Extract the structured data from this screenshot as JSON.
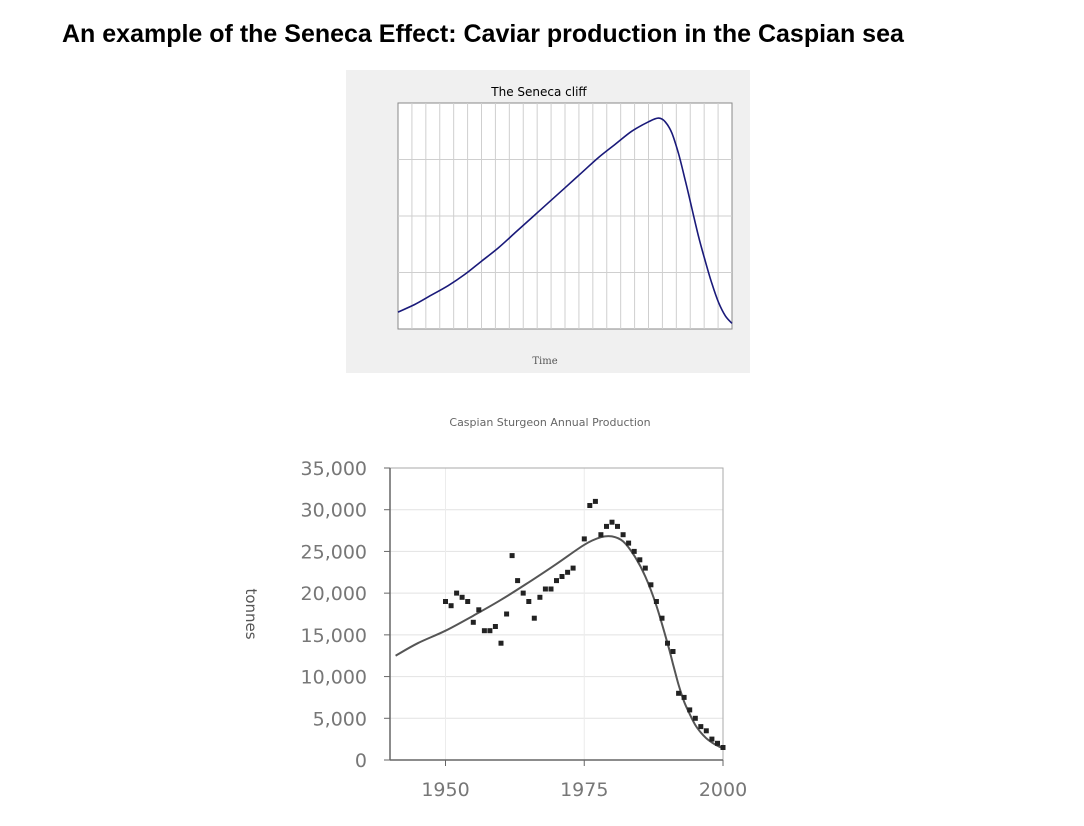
{
  "page": {
    "title": "An example of the Seneca Effect: Caviar production in the Caspian sea",
    "stray_mark": "\\"
  },
  "chart_data": [
    {
      "type": "line",
      "title": "The Seneca cliff",
      "xlabel": "Time",
      "ylabel": "",
      "grid": true,
      "x": [
        0,
        0.05,
        0.1,
        0.15,
        0.2,
        0.25,
        0.3,
        0.35,
        0.4,
        0.45,
        0.5,
        0.55,
        0.6,
        0.65,
        0.7,
        0.75,
        0.78,
        0.8,
        0.82,
        0.84,
        0.86,
        0.88,
        0.9,
        0.92,
        0.94,
        0.96,
        0.98,
        1.0
      ],
      "series": [
        {
          "values": [
            0.09,
            0.13,
            0.18,
            0.23,
            0.29,
            0.36,
            0.43,
            0.51,
            0.59,
            0.67,
            0.75,
            0.83,
            0.91,
            0.98,
            1.05,
            1.1,
            1.12,
            1.1,
            1.04,
            0.93,
            0.79,
            0.64,
            0.49,
            0.36,
            0.24,
            0.14,
            0.07,
            0.03
          ]
        }
      ],
      "ylim": [
        0,
        1.2
      ]
    },
    {
      "type": "scatter",
      "title": "Caspian Sturgeon Annual Production",
      "ylabel": "tonnes",
      "xlabel": "",
      "xlim": [
        1940,
        2000
      ],
      "ylim": [
        0,
        35000
      ],
      "x_ticks": [
        1950,
        1975,
        2000
      ],
      "x_tick_labels": [
        "1950",
        "1975",
        "2000"
      ],
      "y_ticks": [
        0,
        5000,
        10000,
        15000,
        20000,
        25000,
        30000,
        35000
      ],
      "y_tick_labels": [
        "0",
        "5,000",
        "10,000",
        "15,000",
        "20,000",
        "25,000",
        "30,000",
        "35,000"
      ],
      "grid": true,
      "points": [
        [
          1950,
          19000
        ],
        [
          1951,
          18500
        ],
        [
          1952,
          20000
        ],
        [
          1953,
          19500
        ],
        [
          1954,
          19000
        ],
        [
          1955,
          16500
        ],
        [
          1956,
          18000
        ],
        [
          1957,
          15500
        ],
        [
          1958,
          15500
        ],
        [
          1959,
          16000
        ],
        [
          1960,
          14000
        ],
        [
          1961,
          17500
        ],
        [
          1962,
          24500
        ],
        [
          1963,
          21500
        ],
        [
          1964,
          20000
        ],
        [
          1965,
          19000
        ],
        [
          1966,
          17000
        ],
        [
          1967,
          19500
        ],
        [
          1968,
          20500
        ],
        [
          1969,
          20500
        ],
        [
          1970,
          21500
        ],
        [
          1971,
          22000
        ],
        [
          1972,
          22500
        ],
        [
          1973,
          23000
        ],
        [
          1975,
          26500
        ],
        [
          1976,
          30500
        ],
        [
          1977,
          31000
        ],
        [
          1978,
          27000
        ],
        [
          1979,
          28000
        ],
        [
          1980,
          28500
        ],
        [
          1981,
          28000
        ],
        [
          1982,
          27000
        ],
        [
          1983,
          26000
        ],
        [
          1984,
          25000
        ],
        [
          1985,
          24000
        ],
        [
          1986,
          23000
        ],
        [
          1987,
          21000
        ],
        [
          1988,
          19000
        ],
        [
          1989,
          17000
        ],
        [
          1990,
          14000
        ],
        [
          1991,
          13000
        ],
        [
          1992,
          8000
        ],
        [
          1993,
          7500
        ],
        [
          1994,
          6000
        ],
        [
          1995,
          5000
        ],
        [
          1996,
          4000
        ],
        [
          1997,
          3500
        ],
        [
          1998,
          2500
        ],
        [
          1999,
          2000
        ],
        [
          2000,
          1500
        ]
      ],
      "fit_line": [
        [
          1941,
          12500
        ],
        [
          1945,
          14000
        ],
        [
          1950,
          15500
        ],
        [
          1955,
          17300
        ],
        [
          1960,
          19200
        ],
        [
          1965,
          21300
        ],
        [
          1970,
          23500
        ],
        [
          1975,
          25800
        ],
        [
          1978,
          26700
        ],
        [
          1980,
          26800
        ],
        [
          1982,
          26200
        ],
        [
          1984,
          24500
        ],
        [
          1986,
          22000
        ],
        [
          1988,
          18500
        ],
        [
          1990,
          14000
        ],
        [
          1991,
          11500
        ],
        [
          1992,
          9000
        ],
        [
          1993,
          7000
        ],
        [
          1994,
          5500
        ],
        [
          1995,
          4200
        ],
        [
          1996,
          3300
        ],
        [
          1997,
          2600
        ],
        [
          1998,
          2100
        ],
        [
          1999,
          1700
        ],
        [
          2000,
          1400
        ]
      ]
    }
  ]
}
